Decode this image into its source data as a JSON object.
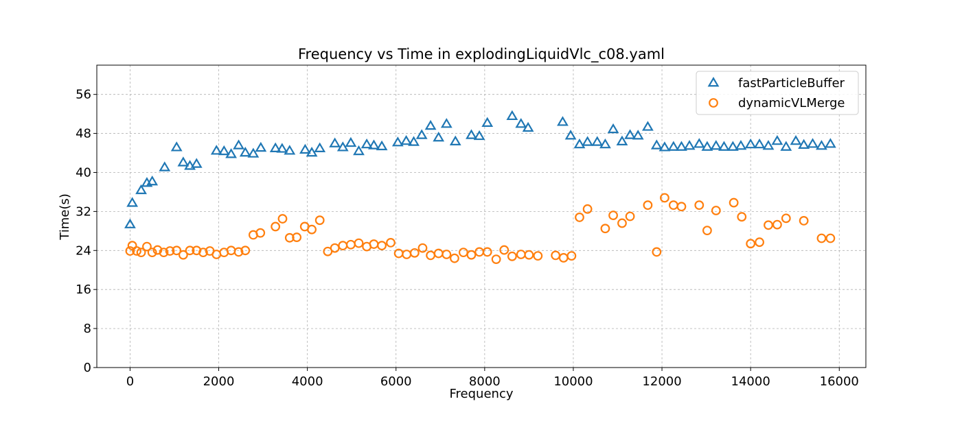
{
  "chart_data": {
    "type": "scatter",
    "title": "Frequency vs Time in explodingLiquidVlc_c08.yaml",
    "xlabel": "Frequency",
    "ylabel": "Time(s)",
    "xlim": [
      -750,
      16600
    ],
    "ylim": [
      0,
      62
    ],
    "xticks": [
      0,
      2000,
      4000,
      6000,
      8000,
      10000,
      12000,
      14000,
      16000
    ],
    "yticks": [
      0,
      8,
      16,
      24,
      32,
      40,
      48,
      56
    ],
    "grid": true,
    "legend_position": "top-right",
    "series": [
      {
        "name": "fastParticleBuffer",
        "marker": "triangle",
        "color": "#1f77b4",
        "points": [
          [
            0,
            29.3
          ],
          [
            50,
            33.7
          ],
          [
            250,
            36.3
          ],
          [
            380,
            37.8
          ],
          [
            500,
            38.1
          ],
          [
            780,
            41.0
          ],
          [
            1050,
            45.1
          ],
          [
            1200,
            42.0
          ],
          [
            1350,
            41.3
          ],
          [
            1500,
            41.7
          ],
          [
            1950,
            44.4
          ],
          [
            2120,
            44.3
          ],
          [
            2280,
            43.7
          ],
          [
            2450,
            45.5
          ],
          [
            2600,
            44.0
          ],
          [
            2780,
            43.8
          ],
          [
            2950,
            45.0
          ],
          [
            3280,
            44.9
          ],
          [
            3430,
            44.8
          ],
          [
            3600,
            44.4
          ],
          [
            3950,
            44.6
          ],
          [
            4100,
            44.0
          ],
          [
            4280,
            44.9
          ],
          [
            4620,
            45.9
          ],
          [
            4800,
            45.1
          ],
          [
            4980,
            46.0
          ],
          [
            5160,
            44.3
          ],
          [
            5340,
            45.7
          ],
          [
            5500,
            45.5
          ],
          [
            5680,
            45.3
          ],
          [
            6040,
            46.1
          ],
          [
            6230,
            46.4
          ],
          [
            6400,
            46.2
          ],
          [
            6580,
            47.6
          ],
          [
            6780,
            49.5
          ],
          [
            6960,
            47.1
          ],
          [
            7140,
            49.9
          ],
          [
            7340,
            46.3
          ],
          [
            7700,
            47.6
          ],
          [
            7880,
            47.4
          ],
          [
            8060,
            50.1
          ],
          [
            8620,
            51.5
          ],
          [
            8820,
            49.9
          ],
          [
            8980,
            49.1
          ],
          [
            9760,
            50.3
          ],
          [
            9940,
            47.5
          ],
          [
            10140,
            45.7
          ],
          [
            10320,
            46.2
          ],
          [
            10540,
            46.2
          ],
          [
            10720,
            45.7
          ],
          [
            10900,
            48.8
          ],
          [
            11100,
            46.3
          ],
          [
            11280,
            47.6
          ],
          [
            11460,
            47.5
          ],
          [
            11680,
            49.3
          ],
          [
            11880,
            45.5
          ],
          [
            12060,
            45.1
          ],
          [
            12260,
            45.2
          ],
          [
            12440,
            45.2
          ],
          [
            12620,
            45.4
          ],
          [
            12840,
            45.8
          ],
          [
            13020,
            45.2
          ],
          [
            13220,
            45.4
          ],
          [
            13400,
            45.2
          ],
          [
            13600,
            45.2
          ],
          [
            13780,
            45.4
          ],
          [
            14000,
            45.7
          ],
          [
            14200,
            45.7
          ],
          [
            14400,
            45.4
          ],
          [
            14600,
            46.4
          ],
          [
            14800,
            45.2
          ],
          [
            15020,
            46.4
          ],
          [
            15200,
            45.6
          ],
          [
            15400,
            45.8
          ],
          [
            15600,
            45.4
          ],
          [
            15800,
            45.8
          ]
        ]
      },
      {
        "name": "dynamicVLMerge",
        "marker": "circle",
        "color": "#ff7f0e",
        "points": [
          [
            0,
            23.9
          ],
          [
            50,
            25.0
          ],
          [
            150,
            23.9
          ],
          [
            250,
            23.6
          ],
          [
            380,
            24.8
          ],
          [
            500,
            23.6
          ],
          [
            620,
            24.1
          ],
          [
            760,
            23.6
          ],
          [
            900,
            23.9
          ],
          [
            1050,
            24.0
          ],
          [
            1200,
            23.1
          ],
          [
            1350,
            24.0
          ],
          [
            1500,
            24.0
          ],
          [
            1650,
            23.6
          ],
          [
            1800,
            23.9
          ],
          [
            1950,
            23.2
          ],
          [
            2120,
            23.6
          ],
          [
            2280,
            24.0
          ],
          [
            2450,
            23.7
          ],
          [
            2600,
            24.0
          ],
          [
            2780,
            27.2
          ],
          [
            2940,
            27.6
          ],
          [
            3280,
            28.9
          ],
          [
            3440,
            30.5
          ],
          [
            3600,
            26.6
          ],
          [
            3760,
            26.7
          ],
          [
            3940,
            28.9
          ],
          [
            4100,
            28.3
          ],
          [
            4280,
            30.2
          ],
          [
            4460,
            23.8
          ],
          [
            4620,
            24.5
          ],
          [
            4800,
            25.0
          ],
          [
            4980,
            25.2
          ],
          [
            5160,
            25.5
          ],
          [
            5340,
            24.8
          ],
          [
            5500,
            25.3
          ],
          [
            5680,
            25.0
          ],
          [
            5880,
            25.6
          ],
          [
            6060,
            23.4
          ],
          [
            6240,
            23.2
          ],
          [
            6420,
            23.5
          ],
          [
            6600,
            24.5
          ],
          [
            6780,
            23.0
          ],
          [
            6960,
            23.4
          ],
          [
            7140,
            23.2
          ],
          [
            7320,
            22.4
          ],
          [
            7520,
            23.6
          ],
          [
            7700,
            23.1
          ],
          [
            7880,
            23.7
          ],
          [
            8060,
            23.7
          ],
          [
            8260,
            22.2
          ],
          [
            8440,
            24.1
          ],
          [
            8620,
            22.8
          ],
          [
            8820,
            23.2
          ],
          [
            9000,
            23.1
          ],
          [
            9200,
            22.9
          ],
          [
            9600,
            23.0
          ],
          [
            9780,
            22.5
          ],
          [
            9960,
            22.9
          ],
          [
            10140,
            30.8
          ],
          [
            10320,
            32.5
          ],
          [
            10720,
            28.5
          ],
          [
            10900,
            31.2
          ],
          [
            11100,
            29.6
          ],
          [
            11280,
            31.0
          ],
          [
            11680,
            33.3
          ],
          [
            11880,
            23.7
          ],
          [
            12060,
            34.8
          ],
          [
            12260,
            33.3
          ],
          [
            12440,
            33.0
          ],
          [
            12840,
            33.3
          ],
          [
            13020,
            28.1
          ],
          [
            13220,
            32.2
          ],
          [
            13620,
            33.8
          ],
          [
            13800,
            30.9
          ],
          [
            14000,
            25.4
          ],
          [
            14200,
            25.7
          ],
          [
            14400,
            29.2
          ],
          [
            14600,
            29.3
          ],
          [
            14800,
            30.6
          ],
          [
            15200,
            30.1
          ],
          [
            15600,
            26.5
          ],
          [
            15800,
            26.5
          ]
        ]
      }
    ]
  }
}
